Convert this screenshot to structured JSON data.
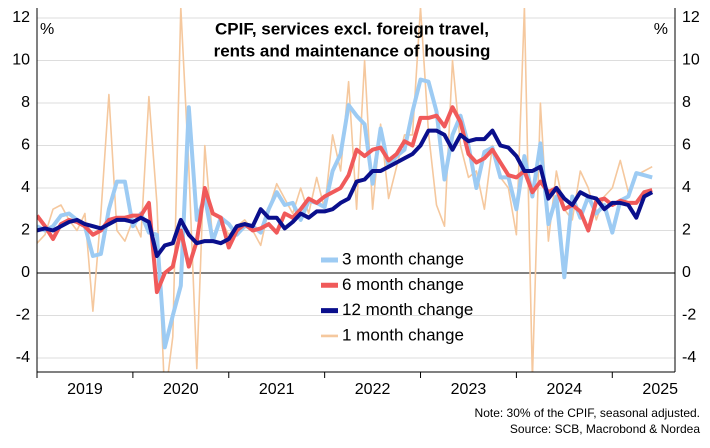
{
  "chart_data": {
    "type": "line",
    "title": [
      "CPIF, services excl. foreign travel,",
      "rents and maintenance of housing"
    ],
    "ylabel": "%",
    "y2label": "%",
    "note": "Note: 30% of the CPIF, seasonal adjusted.",
    "source": "Source: SCB, Macrobond & Nordea",
    "categories": [
      null,
      null,
      null,
      null,
      null,
      null,
      "2019",
      null,
      null,
      null,
      null,
      null,
      null,
      null,
      null,
      null,
      null,
      null,
      "2020",
      null,
      null,
      null,
      null,
      null,
      null,
      null,
      null,
      null,
      null,
      null,
      "2021",
      null,
      null,
      null,
      null,
      null,
      null,
      null,
      null,
      null,
      null,
      null,
      "2022",
      null,
      null,
      null,
      null,
      null,
      null,
      null,
      null,
      null,
      null,
      null,
      "2023",
      null,
      null,
      null,
      null,
      null,
      null,
      null,
      null,
      null,
      null,
      null,
      "2024",
      null,
      null,
      null,
      null,
      null,
      null,
      null,
      null,
      null,
      null,
      null,
      "2025"
    ],
    "ylim": [
      -4.66,
      12.47
    ],
    "yticks": [
      -4,
      -2,
      0,
      2,
      4,
      6,
      8,
      10,
      12
    ],
    "grid": true,
    "series": [
      {
        "name": "3 month change",
        "color": "#9dcbf3",
        "width": 4,
        "values": [
          2.2,
          2.0,
          2.2,
          2.7,
          2.8,
          2.5,
          2.2,
          0.8,
          0.9,
          3.0,
          4.3,
          4.3,
          2.2,
          2.8,
          1.9,
          1.8,
          -3.5,
          -2.0,
          -0.6,
          7.8,
          2.5,
          3.6,
          1.5,
          2.6,
          2.3,
          1.8,
          2.2,
          2.2,
          1.9,
          3.0,
          3.8,
          3.2,
          3.3,
          2.5,
          3.4,
          3.3,
          3.1,
          4.8,
          5.6,
          7.9,
          7.4,
          7.0,
          4.2,
          6.8,
          5.0,
          5.5,
          5.8,
          7.6,
          9.1,
          9.0,
          7.6,
          4.4,
          6.5,
          7.4,
          6.0,
          4.0,
          5.7,
          5.9,
          4.5,
          4.5,
          3.0,
          5.5,
          3.6,
          6.1,
          2.3,
          3.6,
          -0.2,
          3.6,
          2.6,
          3.6,
          2.8,
          3.2,
          1.9,
          3.4,
          3.6,
          4.7,
          4.6,
          4.5,
          null
        ]
      },
      {
        "name": "6 month change",
        "color": "#f05a5a",
        "width": 4,
        "values": [
          2.7,
          2.2,
          1.6,
          2.3,
          2.5,
          2.4,
          2.2,
          1.8,
          2.0,
          2.5,
          2.6,
          2.6,
          2.7,
          2.7,
          3.3,
          -0.9,
          0.0,
          0.3,
          2.0,
          0.3,
          1.5,
          4.0,
          2.8,
          2.6,
          1.2,
          2.0,
          2.3,
          2.0,
          2.1,
          2.3,
          1.9,
          2.8,
          2.6,
          3.0,
          3.5,
          3.3,
          3.6,
          3.8,
          4.0,
          4.6,
          5.8,
          5.5,
          5.8,
          5.9,
          5.3,
          5.6,
          6.2,
          6.0,
          7.3,
          7.3,
          7.4,
          6.9,
          7.8,
          7.1,
          5.6,
          5.2,
          5.4,
          5.8,
          5.2,
          4.6,
          4.5,
          4.8,
          3.8,
          4.3,
          3.8,
          4.0,
          3.0,
          3.2,
          2.9,
          2.0,
          3.4,
          3.5,
          3.2,
          3.4,
          3.3,
          3.3,
          3.8,
          3.9,
          null
        ]
      },
      {
        "name": "12 month change",
        "color": "#0a0f8c",
        "width": 4,
        "values": [
          2.0,
          2.1,
          2.0,
          2.2,
          2.4,
          2.5,
          2.3,
          2.2,
          2.1,
          2.3,
          2.5,
          2.5,
          2.4,
          2.6,
          2.4,
          0.8,
          1.3,
          1.4,
          2.5,
          1.8,
          1.4,
          1.5,
          1.5,
          1.4,
          1.6,
          2.2,
          2.3,
          2.2,
          3.0,
          2.6,
          2.6,
          2.1,
          2.4,
          2.8,
          2.6,
          2.9,
          2.9,
          3.0,
          3.3,
          3.5,
          4.3,
          4.4,
          4.8,
          4.8,
          5.0,
          5.2,
          5.4,
          5.6,
          6.0,
          6.7,
          6.7,
          6.5,
          5.8,
          6.5,
          6.2,
          6.3,
          6.3,
          6.7,
          6.0,
          5.9,
          5.5,
          4.8,
          4.8,
          5.0,
          3.5,
          4.0,
          3.5,
          3.2,
          3.8,
          3.6,
          3.5,
          3.0,
          3.3,
          3.3,
          3.2,
          2.6,
          3.6,
          3.8,
          null
        ]
      },
      {
        "name": "1 month change",
        "color": "#f5c89e",
        "width": 1.6,
        "values": [
          1.4,
          1.8,
          3.0,
          3.2,
          2.5,
          2.0,
          2.8,
          -1.8,
          2.8,
          8.4,
          2.0,
          1.5,
          2.5,
          1.7,
          8.3,
          3.3,
          -6.0,
          -3.0,
          12.5,
          5.0,
          -4.5,
          6.0,
          1.5,
          2.5,
          1.8,
          2.2,
          2.5,
          2.0,
          1.3,
          3.0,
          4.2,
          3.5,
          2.8,
          4.0,
          2.8,
          4.5,
          3.0,
          6.5,
          4.8,
          9.0,
          3.0,
          10.0,
          3.0,
          7.0,
          3.5,
          5.0,
          6.5,
          6.5,
          12.5,
          6.6,
          3.2,
          2.2,
          10.0,
          6.0,
          4.5,
          4.8,
          3.0,
          6.0,
          4.5,
          4.0,
          1.8,
          12.5,
          -5.0,
          8.0,
          1.5,
          4.8,
          3.0,
          2.5,
          4.8,
          4.0,
          2.5,
          3.6,
          4.0,
          5.3,
          3.8,
          4.6,
          4.8,
          5.0,
          null
        ]
      }
    ]
  }
}
